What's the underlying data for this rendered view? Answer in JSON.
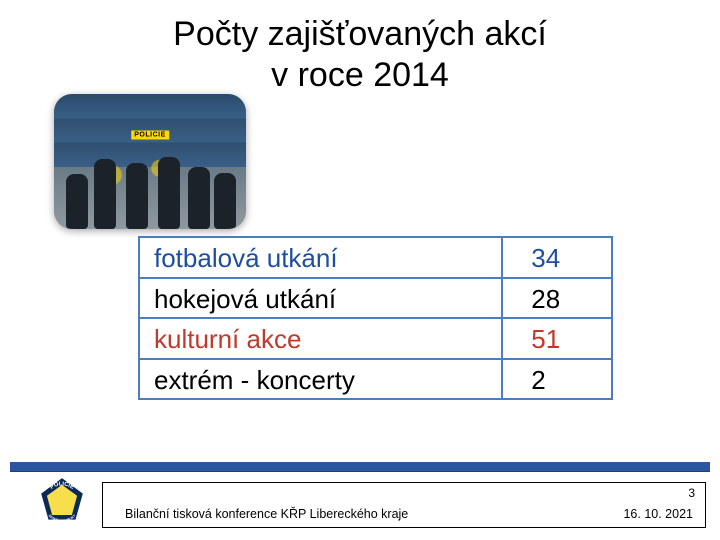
{
  "title_line1": "Počty zajišťovaných akcí",
  "title_line2": "v roce 2014",
  "photo_label": "POLICIE",
  "table": {
    "border_color": "#4a7fbf",
    "rows": [
      {
        "label": "fotbalová utkání",
        "value": "34",
        "color": "#1f4ea1"
      },
      {
        "label": "hokejová utkání",
        "value": "28",
        "color": "#000000"
      },
      {
        "label": "kulturní akce",
        "value": "51",
        "color": "#c0392b"
      },
      {
        "label": "extrém - koncerty",
        "value": "2",
        "color": "#000000"
      }
    ]
  },
  "footer": {
    "page_number": "3",
    "text": "Bilanční tisková konference KŘP Libereckého kraje",
    "date": "16. 10. 2021"
  },
  "logo": {
    "outer_fill": "#0b2a55",
    "inner_fill": "#f6df4a",
    "text_color": "#ffffff",
    "top_text": "POLICIE",
    "bottom_text": "ČESKÉ REPUBLIKY"
  }
}
